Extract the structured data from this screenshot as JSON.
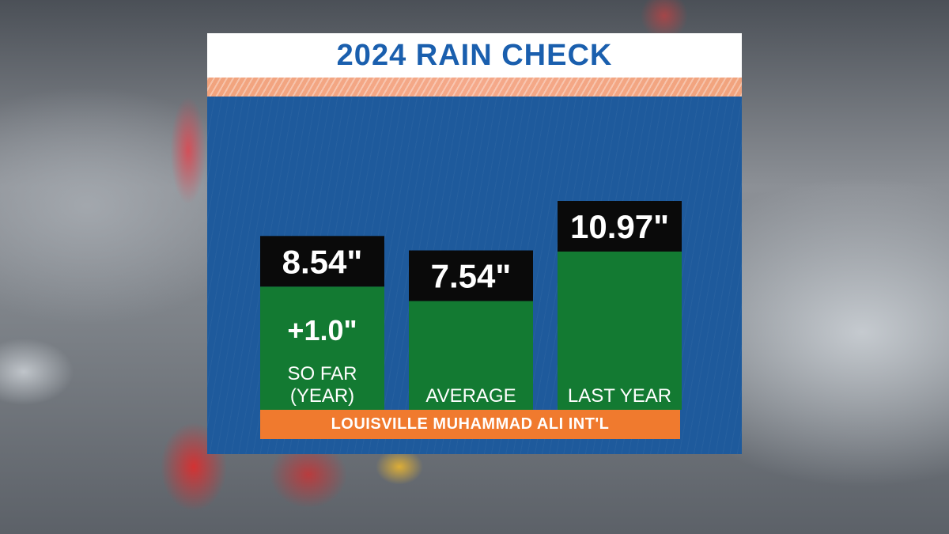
{
  "header": {
    "title": "2024 RAIN CHECK"
  },
  "footer": {
    "location": "LOUISVILLE MUHAMMAD ALI INT'L"
  },
  "colors": {
    "title_text": "#1a5fae",
    "panel": "#1e5a9c",
    "bar": "#137a32",
    "value_box": "#0a0a0a",
    "footer": "#f07a2e",
    "stripe": "#f4a582"
  },
  "chart_data": {
    "type": "bar",
    "title": "2024 RAIN CHECK",
    "unit": "\"",
    "categories": [
      "SO FAR (YEAR)",
      "AVERAGE",
      "LAST YEAR"
    ],
    "category_lines": [
      [
        "SO FAR",
        "(YEAR)"
      ],
      [
        "AVERAGE"
      ],
      [
        "LAST YEAR"
      ]
    ],
    "values": [
      8.54,
      7.54,
      10.97
    ],
    "value_labels": [
      "8.54\"",
      "7.54\"",
      "10.97\""
    ],
    "annotations": [
      {
        "category": "SO FAR (YEAR)",
        "text": "+1.0\""
      }
    ],
    "grid": false,
    "legend": "none"
  }
}
